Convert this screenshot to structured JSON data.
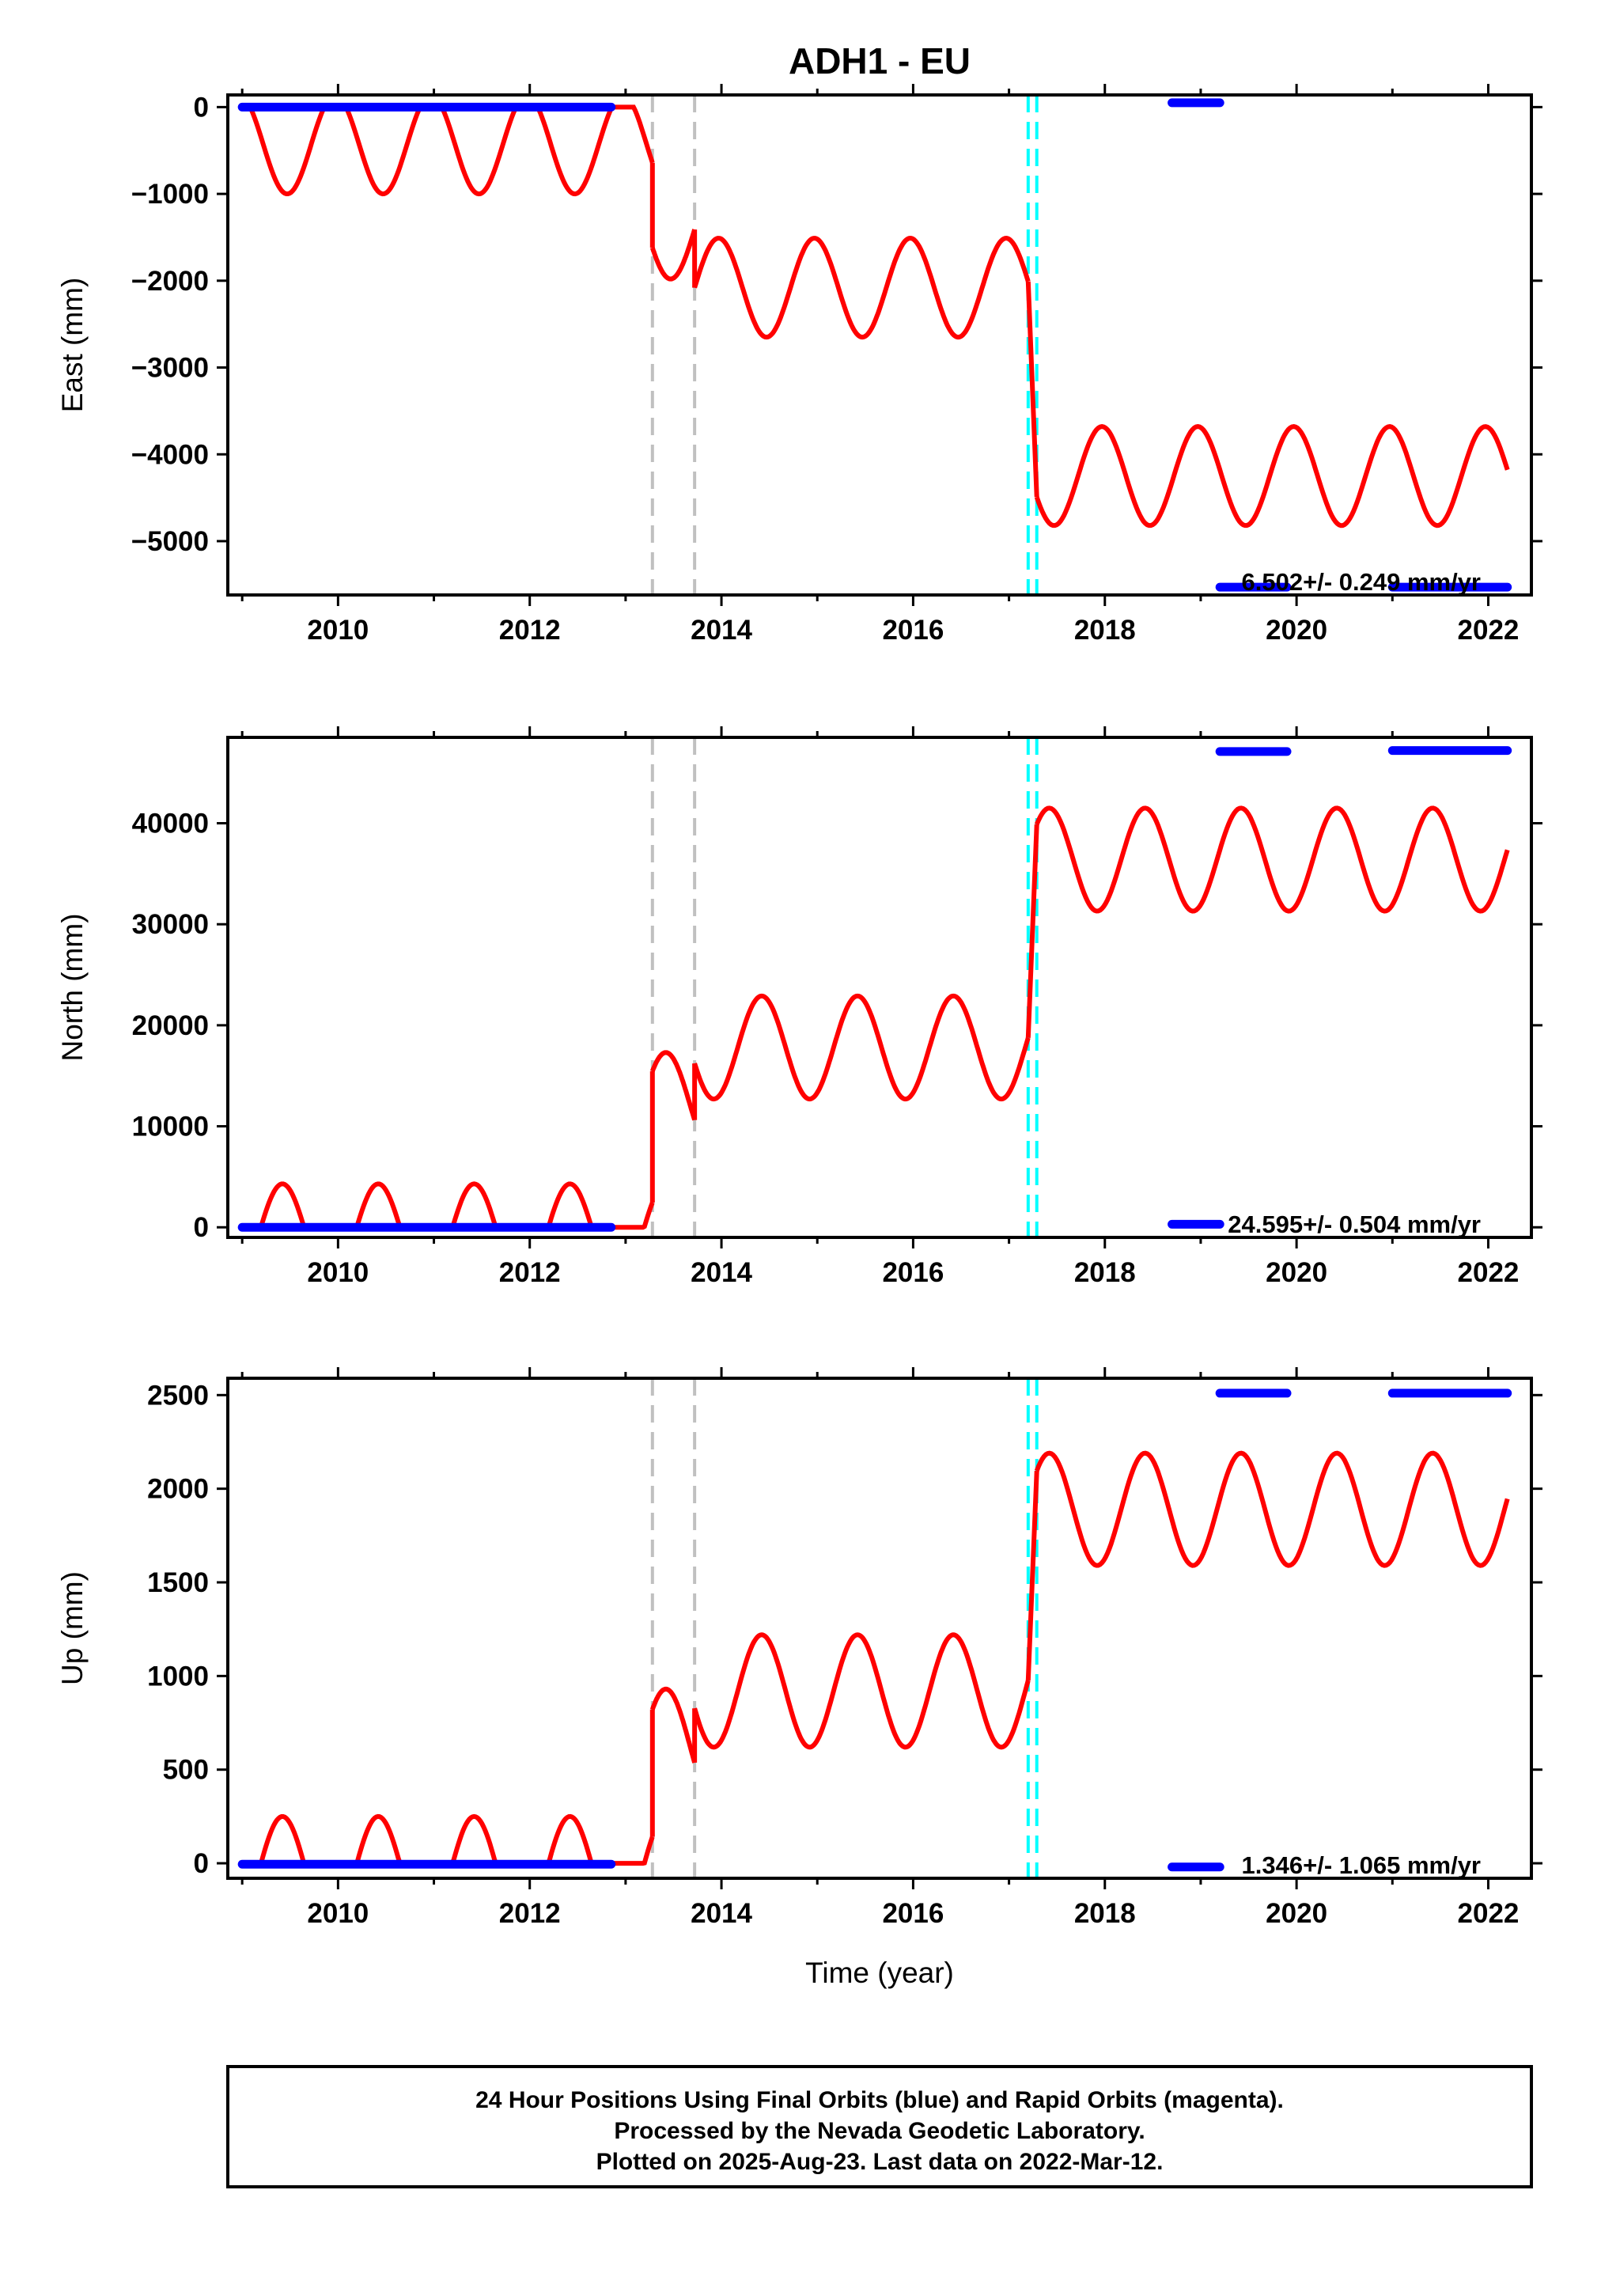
{
  "chart_data": {
    "type": "line",
    "title": "ADH1 - EU",
    "xlabel": "Time (year)",
    "xlim": [
      2008.85,
      2022.45
    ],
    "xticks": [
      2010,
      2012,
      2014,
      2016,
      2018,
      2020,
      2022
    ],
    "grid": false,
    "colors": {
      "data": "#0000ff",
      "model": "#ff0000",
      "offset_gray": "#c0c0c0",
      "offset_cyan": "#00ffff",
      "frame": "#000000"
    },
    "offset_lines": [
      {
        "x": 2013.28,
        "color": "gray"
      },
      {
        "x": 2013.72,
        "color": "gray"
      },
      {
        "x": 2017.2,
        "color": "cyan"
      },
      {
        "x": 2017.29,
        "color": "cyan"
      }
    ],
    "panels": [
      {
        "ylabel": "East (mm)",
        "ylim": [
          -5620,
          140
        ],
        "yticks": [
          0,
          -1000,
          -2000,
          -3000,
          -4000,
          -5000
        ],
        "rate_text": "6.502+/- 0.249 mm/yr",
        "data_segments": [
          {
            "x_start": 2009.0,
            "x_end": 2012.85,
            "y": 0
          },
          {
            "x_start": 2018.7,
            "x_end": 2019.2,
            "y": 50
          },
          {
            "x_start": 2019.2,
            "x_end": 2019.9,
            "y": -5530
          },
          {
            "x_start": 2021.0,
            "x_end": 2022.2,
            "y": -5530
          }
        ],
        "model_curve": {
          "amplitude": 570,
          "period_years": 1.0,
          "phase_peak": 2009.97,
          "clip_y_above": 0,
          "segments": [
            {
              "x_start": 2009.0,
              "x_end": 2013.28,
              "mean": -430,
              "slope": 0,
              "ref_x": 2011
            },
            {
              "x_start": 2013.28,
              "x_end": 2013.72,
              "mean": -1410,
              "slope": 0,
              "ref_x": 2013.5
            },
            {
              "x_start": 2013.72,
              "x_end": 2017.2,
              "mean": -2080,
              "slope": 0,
              "ref_x": 2015.5
            },
            {
              "x_start": 2017.29,
              "x_end": 2022.2,
              "mean": -4250,
              "slope": 0,
              "ref_x": 2019.5
            }
          ]
        }
      },
      {
        "ylabel": "North (mm)",
        "ylim": [
          -1000,
          48500
        ],
        "yticks": [
          0,
          10000,
          20000,
          30000,
          40000
        ],
        "rate_text": "24.595+/- 0.504 mm/yr",
        "data_segments": [
          {
            "x_start": 2009.0,
            "x_end": 2012.85,
            "y": 0
          },
          {
            "x_start": 2018.7,
            "x_end": 2019.2,
            "y": 300
          },
          {
            "x_start": 2019.2,
            "x_end": 2019.9,
            "y": 47100
          },
          {
            "x_start": 2021.0,
            "x_end": 2022.2,
            "y": 47200
          }
        ],
        "model_curve": {
          "amplitude": 5100,
          "period_years": 1.0,
          "phase_peak": 2010.42,
          "clip_y_below": 0,
          "segments": [
            {
              "x_start": 2009.0,
              "x_end": 2013.28,
              "mean": -800,
              "slope": 0,
              "ref_x": 2011
            },
            {
              "x_start": 2013.28,
              "x_end": 2013.72,
              "mean": 12200,
              "slope": 0,
              "ref_x": 2013.5
            },
            {
              "x_start": 2013.72,
              "x_end": 2017.2,
              "mean": 17800,
              "slope": 0,
              "ref_x": 2015.5
            },
            {
              "x_start": 2017.29,
              "x_end": 2022.2,
              "mean": 36400,
              "slope": 0,
              "ref_x": 2019.5
            }
          ]
        }
      },
      {
        "ylabel": "Up (mm)",
        "ylim": [
          -80,
          2590
        ],
        "yticks": [
          0,
          500,
          1000,
          1500,
          2000,
          2500
        ],
        "rate_text": "1.346+/- 1.065 mm/yr",
        "data_segments": [
          {
            "x_start": 2009.0,
            "x_end": 2012.85,
            "y": -5
          },
          {
            "x_start": 2018.7,
            "x_end": 2019.2,
            "y": -20
          },
          {
            "x_start": 2019.2,
            "x_end": 2019.9,
            "y": 2510
          },
          {
            "x_start": 2021.0,
            "x_end": 2022.2,
            "y": 2510
          }
        ],
        "model_curve": {
          "amplitude": 300,
          "period_years": 1.0,
          "phase_peak": 2010.42,
          "clip_y_below": 0,
          "segments": [
            {
              "x_start": 2009.0,
              "x_end": 2013.28,
              "mean": -50,
              "slope": 0,
              "ref_x": 2011
            },
            {
              "x_start": 2013.28,
              "x_end": 2013.72,
              "mean": 630,
              "slope": 0,
              "ref_x": 2013.5
            },
            {
              "x_start": 2013.72,
              "x_end": 2017.2,
              "mean": 920,
              "slope": 0,
              "ref_x": 2015.5
            },
            {
              "x_start": 2017.29,
              "x_end": 2022.2,
              "mean": 1890,
              "slope": 0,
              "ref_x": 2019.5
            }
          ]
        }
      }
    ]
  },
  "footer": {
    "line1": "24 Hour Positions Using Final Orbits (blue) and Rapid Orbits (magenta).",
    "line2": "Processed by the Nevada Geodetic Laboratory.",
    "line3": "Plotted on 2025-Aug-23. Last data on 2022-Mar-12."
  }
}
